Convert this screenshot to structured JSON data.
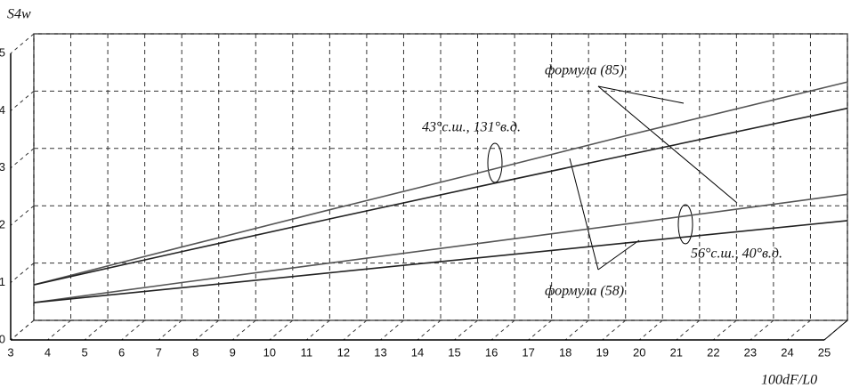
{
  "chart_data": {
    "type": "line",
    "y_label": "S4w",
    "x_label": "100dF/L0",
    "annotations": [
      "формула (85)",
      "43°с.ш., 131°в.д.",
      "56°с.ш., 40°в.д.",
      "формула (58)"
    ],
    "x": [
      3,
      7,
      11,
      15,
      19,
      25
    ],
    "series": [
      {
        "color": "#555555",
        "values": [
          0.62,
          1.28,
          1.93,
          2.57,
          3.22,
          4.16
        ]
      },
      {
        "color": "#222222",
        "values": [
          0.62,
          1.2,
          1.77,
          2.33,
          2.88,
          3.7
        ]
      },
      {
        "color": "#555555",
        "values": [
          0.31,
          0.66,
          1.0,
          1.34,
          1.68,
          2.2
        ]
      },
      {
        "color": "#222222",
        "values": [
          0.31,
          0.57,
          0.83,
          1.09,
          1.35,
          1.74
        ]
      }
    ],
    "xlim": [
      3,
      25
    ],
    "ylim": [
      0,
      5
    ],
    "xticks": [
      3,
      4,
      5,
      6,
      7,
      8,
      9,
      10,
      11,
      12,
      13,
      14,
      15,
      16,
      17,
      18,
      19,
      20,
      21,
      22,
      23,
      24,
      25
    ],
    "yticks": [
      0,
      1,
      2,
      3,
      4,
      5
    ],
    "grid": true
  }
}
